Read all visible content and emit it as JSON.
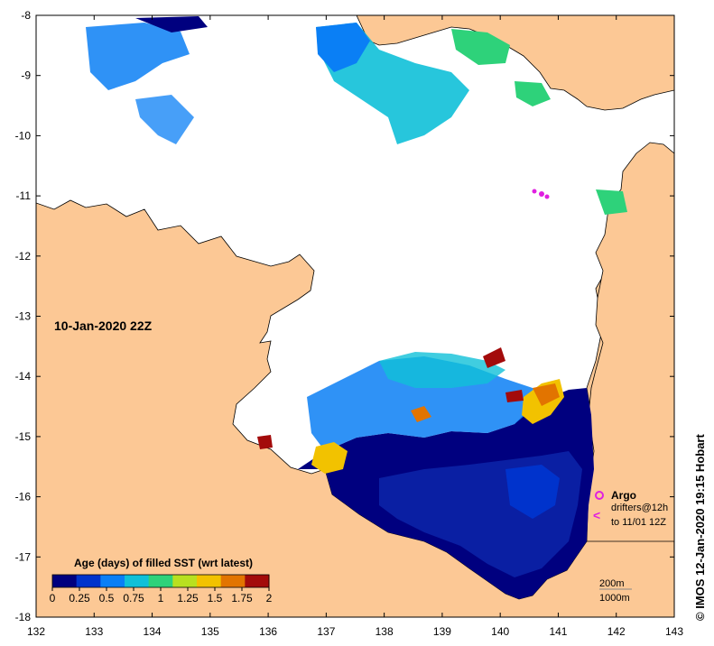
{
  "map": {
    "title": "10-Jan-2020 22Z",
    "credit": "© IMOS 12-Jan-2020 19:15 Hobart",
    "lon_ticks": [
      "132",
      "133",
      "134",
      "135",
      "136",
      "137",
      "138",
      "139",
      "140",
      "141",
      "142",
      "143"
    ],
    "lat_ticks": [
      "-8",
      "-9",
      "-10",
      "-11",
      "-12",
      "-13",
      "-14",
      "-15",
      "-16",
      "-17",
      "-18"
    ],
    "lon_range": [
      132,
      143
    ],
    "lat_range": [
      -8,
      -18
    ]
  },
  "colorbar": {
    "title": "Age (days) of filled SST (wrt latest)",
    "tick_labels": [
      "0",
      "0.25",
      "0.5",
      "0.75",
      "1",
      "1.25",
      "1.5",
      "1.75",
      "2"
    ],
    "range": [
      0,
      2
    ],
    "colors": [
      "#00007f",
      "#0033cc",
      "#0a7ff5",
      "#10c0d8",
      "#2ed27a",
      "#b8e020",
      "#f2c200",
      "#e27400",
      "#a30b0b"
    ]
  },
  "legend": {
    "argo_label": "Argo",
    "drifters_label": "drifters@12h",
    "drifters_time": "to 11/01 12Z",
    "argo_color": "#e020e0",
    "drifter_symbol": "<"
  },
  "contours": {
    "depth_200": "200m",
    "depth_1000": "1000m"
  },
  "colors": {
    "land": "#fcc895",
    "water_no_data": "#ffffff",
    "coast": "#000000"
  }
}
